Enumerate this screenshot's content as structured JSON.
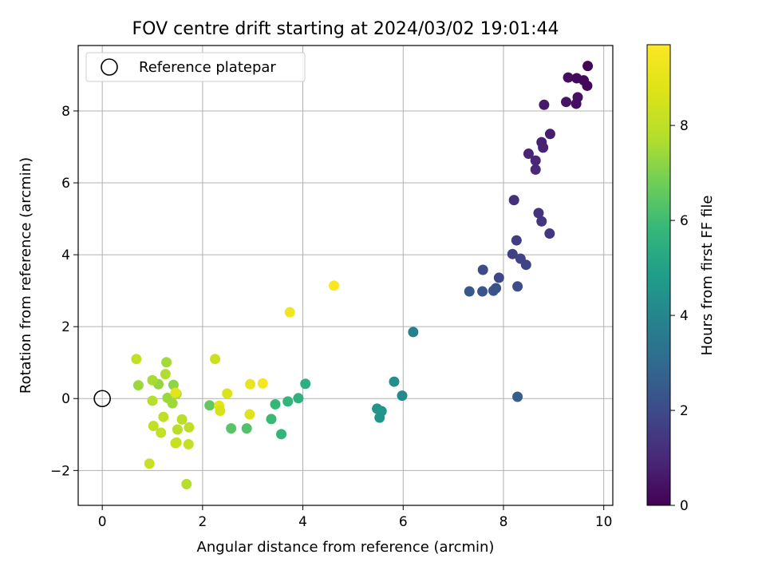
{
  "chart_data": {
    "type": "scatter",
    "title": "FOV centre drift starting at 2024/03/02 19:01:44",
    "xlabel": "Angular distance from reference (arcmin)",
    "ylabel": "Rotation from reference (arcmin)",
    "xlim": [
      -0.48,
      10.18
    ],
    "ylim": [
      -2.97,
      9.82
    ],
    "xticks": [
      0,
      2,
      4,
      6,
      8,
      10
    ],
    "yticks": [
      -2,
      0,
      2,
      4,
      6,
      8
    ],
    "grid": true,
    "legend": {
      "placement": "upper-left",
      "entries": [
        "Reference platepar"
      ]
    },
    "reference_point": {
      "x": 0,
      "y": 0
    },
    "colorbar": {
      "label": "Hours from first FF file",
      "colormap": "viridis",
      "range": [
        0,
        9.7
      ],
      "ticks": [
        0,
        2,
        4,
        6,
        8
      ]
    },
    "points": [
      {
        "x": 9.68,
        "y": 9.25,
        "c": 0.1
      },
      {
        "x": 9.29,
        "y": 8.93,
        "c": 0.3
      },
      {
        "x": 9.46,
        "y": 8.91,
        "c": 0.2
      },
      {
        "x": 9.6,
        "y": 8.85,
        "c": 0.2
      },
      {
        "x": 9.67,
        "y": 8.7,
        "c": 0.15
      },
      {
        "x": 9.48,
        "y": 8.38,
        "c": 0.4
      },
      {
        "x": 9.25,
        "y": 8.25,
        "c": 0.45
      },
      {
        "x": 9.45,
        "y": 8.2,
        "c": 0.35
      },
      {
        "x": 8.81,
        "y": 8.17,
        "c": 0.6
      },
      {
        "x": 8.93,
        "y": 7.36,
        "c": 0.7
      },
      {
        "x": 8.76,
        "y": 7.13,
        "c": 0.8
      },
      {
        "x": 8.79,
        "y": 6.98,
        "c": 0.85
      },
      {
        "x": 8.5,
        "y": 6.81,
        "c": 0.9
      },
      {
        "x": 8.64,
        "y": 6.62,
        "c": 0.95
      },
      {
        "x": 8.64,
        "y": 6.37,
        "c": 1.0
      },
      {
        "x": 8.21,
        "y": 5.52,
        "c": 1.2
      },
      {
        "x": 8.7,
        "y": 5.16,
        "c": 1.3
      },
      {
        "x": 8.76,
        "y": 4.93,
        "c": 1.35
      },
      {
        "x": 8.92,
        "y": 4.59,
        "c": 1.45
      },
      {
        "x": 8.26,
        "y": 4.4,
        "c": 1.6
      },
      {
        "x": 8.18,
        "y": 4.02,
        "c": 1.7
      },
      {
        "x": 8.34,
        "y": 3.89,
        "c": 1.75
      },
      {
        "x": 8.45,
        "y": 3.72,
        "c": 1.8
      },
      {
        "x": 7.59,
        "y": 3.58,
        "c": 2.0
      },
      {
        "x": 7.91,
        "y": 3.36,
        "c": 1.9
      },
      {
        "x": 8.28,
        "y": 3.12,
        "c": 2.1
      },
      {
        "x": 7.85,
        "y": 3.07,
        "c": 2.2
      },
      {
        "x": 7.8,
        "y": 3.0,
        "c": 2.25
      },
      {
        "x": 7.32,
        "y": 2.98,
        "c": 2.4
      },
      {
        "x": 7.58,
        "y": 2.98,
        "c": 2.3
      },
      {
        "x": 8.28,
        "y": 0.05,
        "c": 2.6
      },
      {
        "x": 6.2,
        "y": 1.85,
        "c": 3.8
      },
      {
        "x": 5.82,
        "y": 0.47,
        "c": 4.3
      },
      {
        "x": 5.98,
        "y": 0.08,
        "c": 4.2
      },
      {
        "x": 5.48,
        "y": -0.28,
        "c": 4.5
      },
      {
        "x": 5.57,
        "y": -0.35,
        "c": 4.6
      },
      {
        "x": 5.53,
        "y": -0.53,
        "c": 4.55
      },
      {
        "x": 4.05,
        "y": 0.41,
        "c": 5.5
      },
      {
        "x": 3.91,
        "y": 0.01,
        "c": 5.6
      },
      {
        "x": 3.7,
        "y": -0.08,
        "c": 5.7
      },
      {
        "x": 3.45,
        "y": -0.16,
        "c": 5.8
      },
      {
        "x": 3.37,
        "y": -0.57,
        "c": 5.9
      },
      {
        "x": 3.57,
        "y": -0.99,
        "c": 5.75
      },
      {
        "x": 2.88,
        "y": -0.83,
        "c": 6.3
      },
      {
        "x": 2.57,
        "y": -0.83,
        "c": 6.4
      },
      {
        "x": 2.14,
        "y": -0.19,
        "c": 6.6
      },
      {
        "x": 0.72,
        "y": 0.37,
        "c": 7.4
      },
      {
        "x": 1.28,
        "y": 1.01,
        "c": 7.5
      },
      {
        "x": 1.42,
        "y": 0.38,
        "c": 7.2
      },
      {
        "x": 1.12,
        "y": 0.4,
        "c": 7.3
      },
      {
        "x": 1.0,
        "y": 0.51,
        "c": 7.6
      },
      {
        "x": 1.26,
        "y": 0.68,
        "c": 7.7
      },
      {
        "x": 1.48,
        "y": 0.13,
        "c": 7.5
      },
      {
        "x": 1.3,
        "y": 0.02,
        "c": 7.4
      },
      {
        "x": 1.4,
        "y": -0.13,
        "c": 7.45
      },
      {
        "x": 1.0,
        "y": -0.06,
        "c": 7.8
      },
      {
        "x": 1.22,
        "y": -0.51,
        "c": 8.0
      },
      {
        "x": 1.59,
        "y": -0.58,
        "c": 7.9
      },
      {
        "x": 1.02,
        "y": -0.76,
        "c": 8.05
      },
      {
        "x": 1.17,
        "y": -0.95,
        "c": 8.1
      },
      {
        "x": 1.5,
        "y": -0.86,
        "c": 7.85
      },
      {
        "x": 1.73,
        "y": -0.8,
        "c": 7.95
      },
      {
        "x": 1.48,
        "y": -1.22,
        "c": 8.15
      },
      {
        "x": 1.46,
        "y": -1.24,
        "c": 8.2
      },
      {
        "x": 1.72,
        "y": -1.27,
        "c": 8.1
      },
      {
        "x": 1.68,
        "y": -2.38,
        "c": 7.8
      },
      {
        "x": 0.94,
        "y": -1.81,
        "c": 8.2
      },
      {
        "x": 0.68,
        "y": 1.1,
        "c": 8.1
      },
      {
        "x": 1.46,
        "y": 0.16,
        "c": 8.9
      },
      {
        "x": 2.25,
        "y": 1.1,
        "c": 8.3
      },
      {
        "x": 2.33,
        "y": -0.2,
        "c": 8.9
      },
      {
        "x": 2.35,
        "y": -0.34,
        "c": 8.6
      },
      {
        "x": 2.49,
        "y": 0.14,
        "c": 8.7
      },
      {
        "x": 2.94,
        "y": -0.44,
        "c": 8.8
      },
      {
        "x": 2.95,
        "y": 0.4,
        "c": 9.1
      },
      {
        "x": 3.2,
        "y": 0.42,
        "c": 9.5
      },
      {
        "x": 3.74,
        "y": 2.4,
        "c": 9.3
      },
      {
        "x": 4.62,
        "y": 3.14,
        "c": 9.6
      }
    ]
  }
}
